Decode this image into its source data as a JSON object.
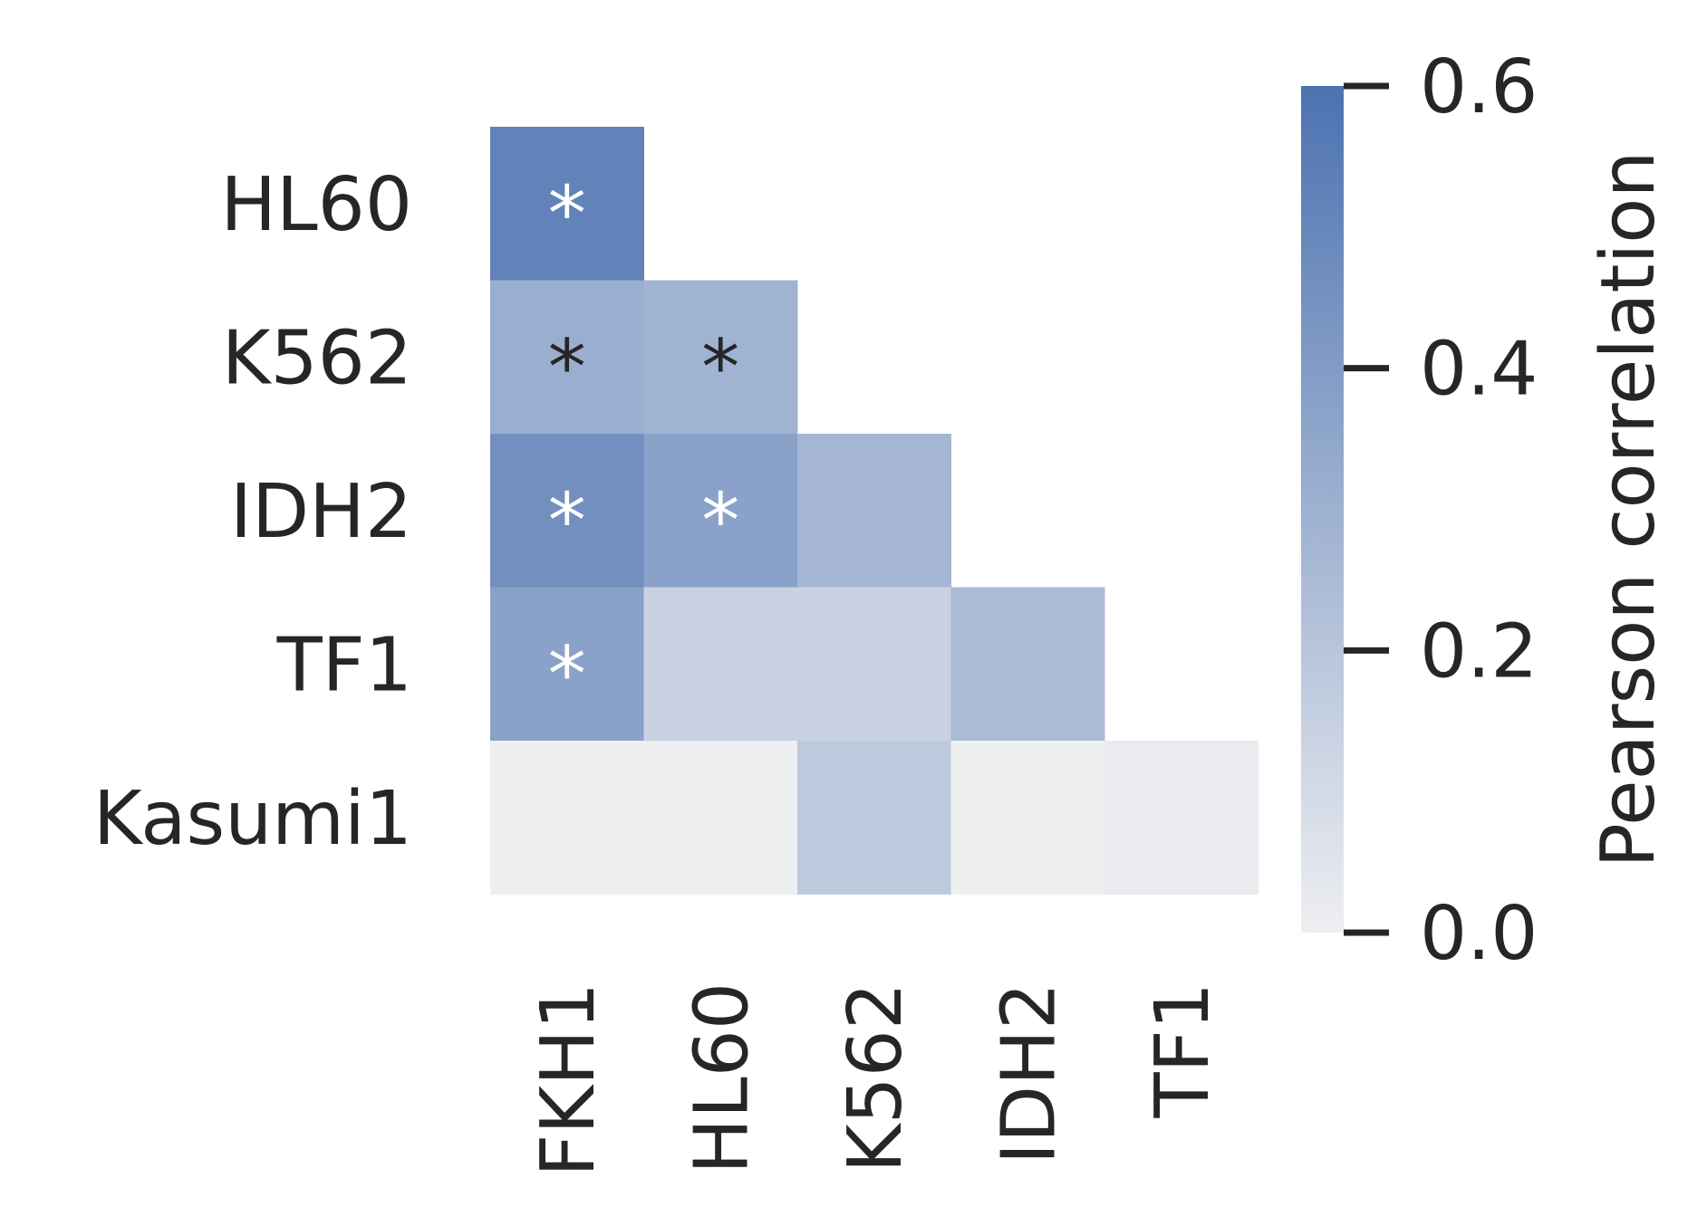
{
  "chart_data": {
    "type": "heatmap",
    "title": "",
    "xlabel": "",
    "ylabel": "",
    "row_labels": [
      "HL60",
      "K562",
      "IDH2",
      "TF1",
      "Kasumi1"
    ],
    "col_labels": [
      "FKH1",
      "HL60",
      "K562",
      "IDH2",
      "TF1"
    ],
    "mask": "lower-triangle",
    "values": [
      [
        0.52,
        null,
        null,
        null,
        null
      ],
      [
        0.31,
        0.29,
        null,
        null,
        null
      ],
      [
        0.46,
        0.37,
        0.27,
        null,
        null
      ],
      [
        0.37,
        0.14,
        0.14,
        0.25,
        null
      ],
      [
        0.0,
        0.0,
        0.18,
        0.0,
        0.02
      ]
    ],
    "significance_marker": "*",
    "significant": [
      [
        true,
        false,
        false,
        false,
        false
      ],
      [
        true,
        true,
        false,
        false,
        false
      ],
      [
        true,
        true,
        false,
        false,
        false
      ],
      [
        true,
        false,
        false,
        false,
        false
      ],
      [
        false,
        false,
        false,
        false,
        false
      ]
    ],
    "colorbar": {
      "label": "Pearson correlation",
      "range": [
        0.0,
        0.6
      ],
      "ticks": [
        "0.0",
        "0.2",
        "0.4",
        "0.6"
      ],
      "color_low": "#eeeff1",
      "color_high": "#4c72b0"
    }
  }
}
